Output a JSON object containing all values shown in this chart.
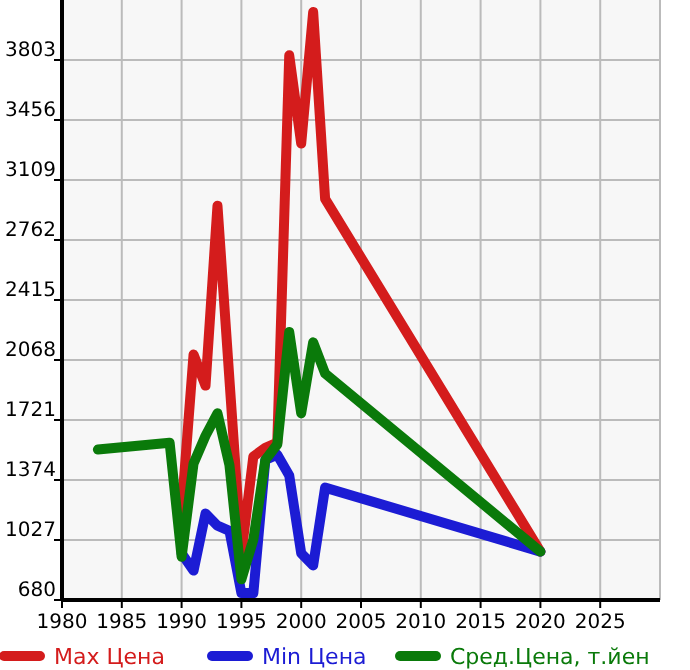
{
  "chart_data": {
    "type": "line",
    "xlim": [
      1980,
      2030
    ],
    "xticks": [
      1980,
      1985,
      1990,
      1995,
      2000,
      2005,
      2010,
      2015,
      2020,
      2025
    ],
    "ylim": [
      680,
      4150
    ],
    "yticks": [
      680,
      1027,
      1374,
      1721,
      2068,
      2415,
      2762,
      3109,
      3456,
      3803
    ],
    "grid": true,
    "legend": "bottom",
    "series": [
      {
        "name": "Max Цена",
        "color": "#d41c1c",
        "x": [
          1990,
          1991,
          1992,
          1993,
          1995,
          1996,
          1997,
          1998,
          1999,
          2000,
          2001,
          2002,
          2020
        ],
        "values": [
          1200,
          2100,
          1920,
          2960,
          950,
          1510,
          1560,
          1590,
          3830,
          3320,
          4080,
          3000,
          960
        ]
      },
      {
        "name": "Min Цена",
        "color": "#1c1cd4",
        "x": [
          1990,
          1991,
          1992,
          1993,
          1994,
          1995,
          1996,
          1997,
          1998,
          1999,
          2000,
          2001,
          2002,
          2020
        ],
        "values": [
          950,
          850,
          1180,
          1110,
          1080,
          720,
          720,
          1490,
          1520,
          1400,
          950,
          880,
          1330,
          960
        ]
      },
      {
        "name": "Сред.Цена, т.йен",
        "color": "#0a7a0a",
        "x": [
          1983,
          1989,
          1990,
          1991,
          1992,
          1993,
          1994,
          1995,
          1996,
          1997,
          1998,
          1999,
          2000,
          2001,
          2002,
          2020
        ],
        "values": [
          1550,
          1590,
          930,
          1470,
          1630,
          1760,
          1460,
          800,
          1030,
          1490,
          1580,
          2230,
          1760,
          2170,
          1990,
          960
        ]
      }
    ]
  }
}
